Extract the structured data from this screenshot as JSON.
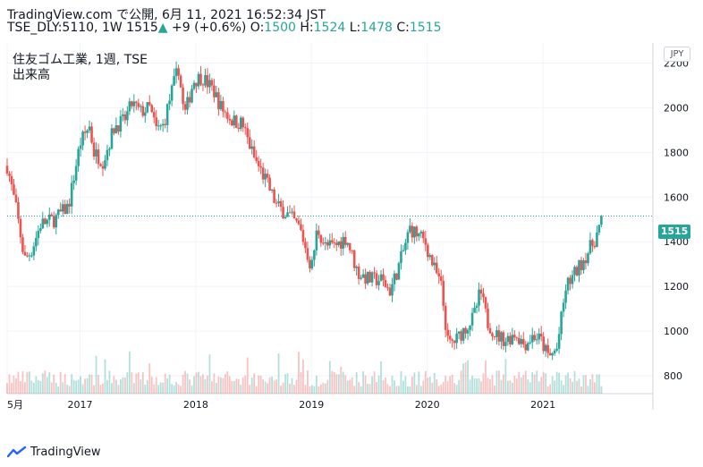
{
  "header": {
    "line1": "TradingView.com で公開, 6月 11, 2021 16:52:34 JST",
    "symbol": "TSE_DLY:5110, 1W",
    "last": "1515",
    "arrow": "▲",
    "change": "+9 (+0.6%)",
    "o_label": "O:",
    "o_value": "1500",
    "h_label": "H:",
    "h_value": "1524",
    "l_label": "L:",
    "l_value": "1478",
    "c_label": "C:",
    "c_value": "1515"
  },
  "legend": {
    "title": "住友ゴム工業, 1週, TSE",
    "volume": "出来高"
  },
  "currency": "JPY",
  "footer": {
    "brand": "TradingView"
  },
  "colors": {
    "up": "#26a69a",
    "down": "#ef5350",
    "grid": "#f0f3fa",
    "axis_text": "#131722"
  },
  "chart_data": {
    "type": "candlestick",
    "x_tick_labels": [
      "5月",
      "2017",
      "2018",
      "2019",
      "2020",
      "2021"
    ],
    "x_tick_times": [
      2016.37,
      2017.0,
      2018.0,
      2019.0,
      2020.0,
      2021.0
    ],
    "y_tick_labels": [
      "800",
      "1000",
      "1200",
      "1400",
      "1600",
      "1800",
      "2000",
      "2200"
    ],
    "y_ticks": [
      800,
      1000,
      1200,
      1400,
      1600,
      1800,
      2000,
      2200
    ],
    "y_range": [
      720,
      2290
    ],
    "x_range": [
      2016.37,
      2021.95
    ],
    "last_price": 1515,
    "last_label": "1515",
    "grid": true,
    "price_path": [
      [
        2016.37,
        1740
      ],
      [
        2016.45,
        1540
      ],
      [
        2016.52,
        1320
      ],
      [
        2016.58,
        1360
      ],
      [
        2016.66,
        1480
      ],
      [
        2016.78,
        1500
      ],
      [
        2016.9,
        1560
      ],
      [
        2017.0,
        1840
      ],
      [
        2017.08,
        1920
      ],
      [
        2017.12,
        1800
      ],
      [
        2017.2,
        1760
      ],
      [
        2017.3,
        1920
      ],
      [
        2017.38,
        1940
      ],
      [
        2017.45,
        2020
      ],
      [
        2017.52,
        1980
      ],
      [
        2017.6,
        2000
      ],
      [
        2017.66,
        1900
      ],
      [
        2017.72,
        1920
      ],
      [
        2017.78,
        2050
      ],
      [
        2017.85,
        2180
      ],
      [
        2017.9,
        1960
      ],
      [
        2017.98,
        2120
      ],
      [
        2018.05,
        2140
      ],
      [
        2018.15,
        2080
      ],
      [
        2018.22,
        2000
      ],
      [
        2018.32,
        1940
      ],
      [
        2018.4,
        1930
      ],
      [
        2018.5,
        1780
      ],
      [
        2018.6,
        1680
      ],
      [
        2018.7,
        1560
      ],
      [
        2018.8,
        1520
      ],
      [
        2018.9,
        1460
      ],
      [
        2019.0,
        1280
      ],
      [
        2019.05,
        1460
      ],
      [
        2019.12,
        1380
      ],
      [
        2019.2,
        1380
      ],
      [
        2019.3,
        1420
      ],
      [
        2019.4,
        1260
      ],
      [
        2019.5,
        1230
      ],
      [
        2019.6,
        1230
      ],
      [
        2019.68,
        1180
      ],
      [
        2019.76,
        1300
      ],
      [
        2019.85,
        1460
      ],
      [
        2019.92,
        1430
      ],
      [
        2019.98,
        1400
      ],
      [
        2020.06,
        1280
      ],
      [
        2020.12,
        1200
      ],
      [
        2020.18,
        940
      ],
      [
        2020.25,
        960
      ],
      [
        2020.32,
        1010
      ],
      [
        2020.4,
        1060
      ],
      [
        2020.46,
        1180
      ],
      [
        2020.52,
        1040
      ],
      [
        2020.6,
        980
      ],
      [
        2020.68,
        960
      ],
      [
        2020.76,
        990
      ],
      [
        2020.84,
        940
      ],
      [
        2020.92,
        980
      ],
      [
        2020.98,
        960
      ],
      [
        2021.05,
        880
      ],
      [
        2021.12,
        920
      ],
      [
        2021.2,
        1200
      ],
      [
        2021.28,
        1260
      ],
      [
        2021.36,
        1330
      ],
      [
        2021.44,
        1400
      ],
      [
        2021.5,
        1480
      ],
      [
        2021.52,
        1515
      ]
    ]
  }
}
